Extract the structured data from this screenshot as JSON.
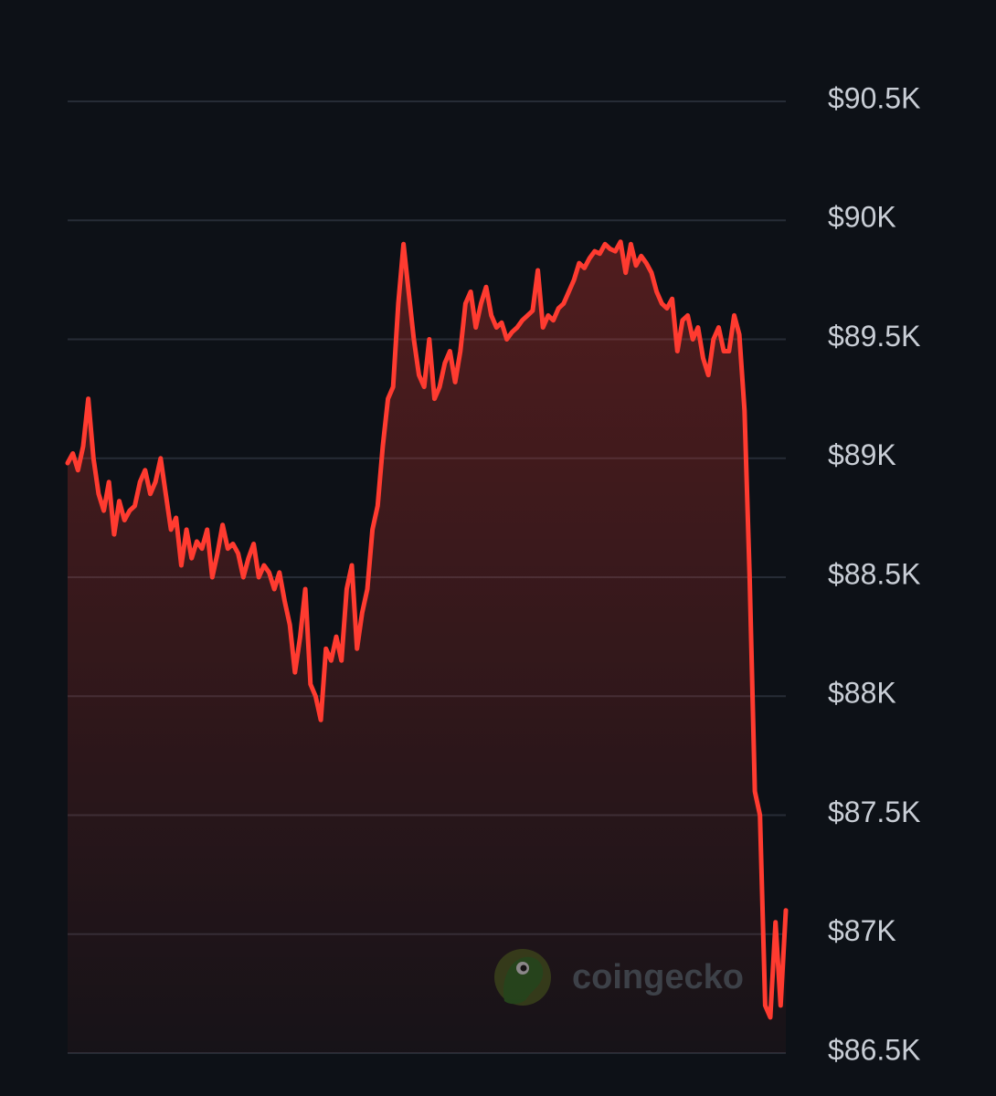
{
  "chart_data": {
    "type": "area",
    "title": "",
    "xlabel": "",
    "ylabel": "",
    "ylim": [
      86500,
      90500
    ],
    "y_tick_values": [
      90500,
      90000,
      89500,
      89000,
      88500,
      88000,
      87500,
      87000,
      86500
    ],
    "y_tick_labels": [
      "$90.5K",
      "$90K",
      "$89.5K",
      "$89K",
      "$88.5K",
      "$88K",
      "$87.5K",
      "$87K",
      "$86.5K"
    ],
    "grid": true,
    "line_color": "#ff3b30",
    "fill_color": "#ff3b30",
    "background": "#0d1117",
    "series": [
      {
        "values": [
          88980,
          89020,
          88950,
          89050,
          89250,
          89000,
          88850,
          88780,
          88900,
          88680,
          88820,
          88740,
          88780,
          88800,
          88900,
          88950,
          88850,
          88900,
          89000,
          88850,
          88700,
          88750,
          88550,
          88700,
          88580,
          88650,
          88620,
          88700,
          88500,
          88600,
          88720,
          88620,
          88640,
          88600,
          88500,
          88580,
          88640,
          88500,
          88550,
          88520,
          88450,
          88520,
          88400,
          88300,
          88100,
          88250,
          88450,
          88050,
          88000,
          87900,
          88200,
          88150,
          88250,
          88150,
          88450,
          88550,
          88200,
          88350,
          88450,
          88700,
          88800,
          89050,
          89250,
          89300,
          89650,
          89900,
          89700,
          89500,
          89350,
          89300,
          89500,
          89250,
          89300,
          89400,
          89450,
          89320,
          89450,
          89650,
          89700,
          89550,
          89650,
          89720,
          89600,
          89550,
          89570,
          89500,
          89530,
          89550,
          89580,
          89600,
          89620,
          89790,
          89550,
          89600,
          89580,
          89630,
          89650,
          89700,
          89750,
          89820,
          89800,
          89840,
          89870,
          89860,
          89900,
          89880,
          89870,
          89910,
          89780,
          89900,
          89810,
          89850,
          89820,
          89780,
          89700,
          89650,
          89630,
          89670,
          89450,
          89580,
          89600,
          89500,
          89550,
          89420,
          89350,
          89500,
          89550,
          89450,
          89450,
          89600,
          89520,
          89200,
          88500,
          87600,
          87500,
          86700,
          86650,
          87050,
          86700,
          87100
        ]
      }
    ]
  },
  "watermark": {
    "text": "coingecko",
    "logo_icon": "gecko-logo"
  }
}
